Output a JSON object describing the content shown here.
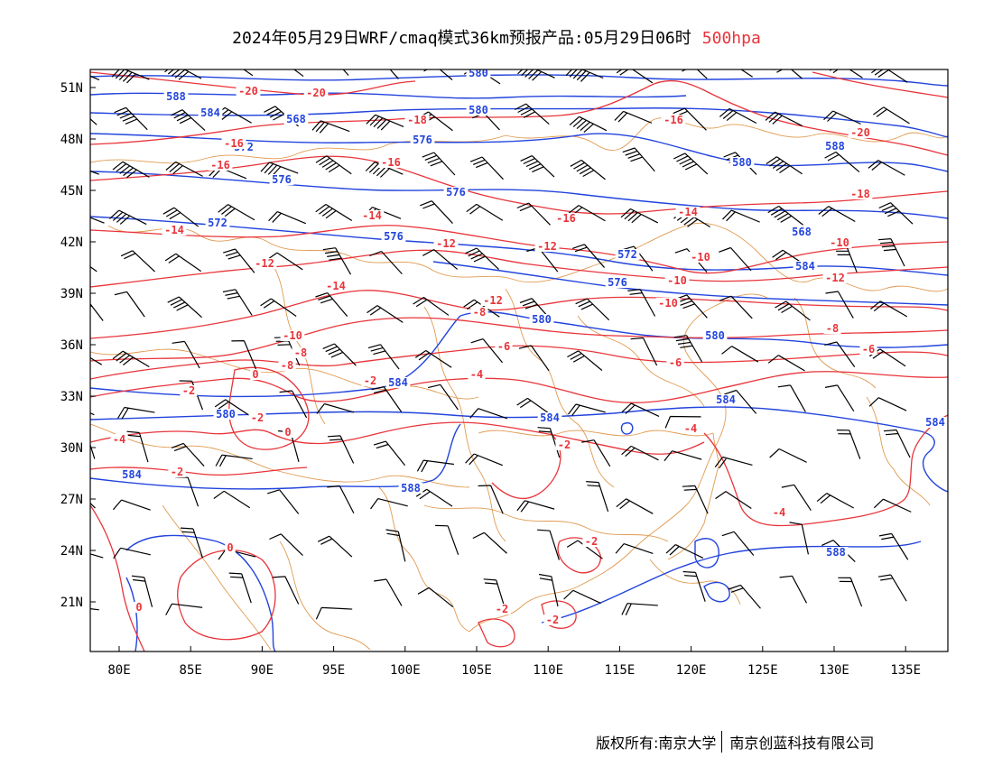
{
  "title": {
    "main": "2024年05月29日WRF/cmaq模式36km预报产品:05月29日06时",
    "level": "500hpa"
  },
  "footer": {
    "copyright": "版权所有:南京大学",
    "company": "南京创蓝科技有限公司"
  },
  "colors": {
    "height_contour": "#2244dd",
    "temperature_contour": "#e8343a",
    "boundary": "#e09a50",
    "wind_barb": "#000000"
  },
  "axes": {
    "lon_range": [
      78,
      138
    ],
    "lat_range": [
      18,
      52
    ],
    "lon_ticks": [
      "80E",
      "85E",
      "90E",
      "95E",
      "100E",
      "105E",
      "110E",
      "115E",
      "120E",
      "125E",
      "130E",
      "135E"
    ],
    "lat_ticks": [
      "51N",
      "48N",
      "45N",
      "42N",
      "39N",
      "36N",
      "33N",
      "30N",
      "27N",
      "24N",
      "21N"
    ]
  },
  "height_labels": [
    "580",
    "588",
    "584",
    "568",
    "580",
    "576",
    "572",
    "576",
    "576",
    "572",
    "576",
    "580",
    "588",
    "580",
    "580",
    "568",
    "576",
    "584",
    "572",
    "588",
    "584",
    "584",
    "584",
    "584",
    "580",
    "584",
    "588"
  ],
  "temp_labels": [
    "-20",
    "-20",
    "-18",
    "-16",
    "-16",
    "-16",
    "-20",
    "-18",
    "-16",
    "-14",
    "-14",
    "-16",
    "-14",
    "-12",
    "-12",
    "-12",
    "-10",
    "-10",
    "-12",
    "-14",
    "-12",
    "-10",
    "-8",
    "-10",
    "-10",
    "-8",
    "-8",
    "-6",
    "-6",
    "-6",
    "-8",
    "-4",
    "-2",
    "0",
    "-2",
    "-4",
    "0",
    "-2",
    "-4",
    "-2",
    "-2",
    "-4",
    "-2",
    "0",
    "0",
    "-2",
    "-2"
  ]
}
